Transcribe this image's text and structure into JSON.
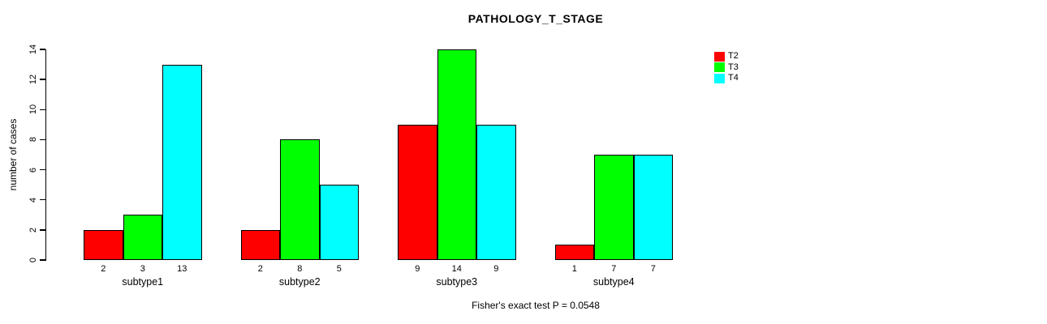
{
  "title": "PATHOLOGY_T_STAGE",
  "caption": "Fisher's exact test P = 0.0548",
  "chart_data": {
    "type": "bar",
    "title": "PATHOLOGY_T_STAGE",
    "xlabel": "",
    "ylabel": "number of cases",
    "categories": [
      "subtype1",
      "subtype2",
      "subtype3",
      "subtype4"
    ],
    "series": [
      {
        "name": "T2",
        "color": "#FF0000",
        "values": [
          2,
          2,
          9,
          1
        ]
      },
      {
        "name": "T3",
        "color": "#00FF00",
        "values": [
          3,
          8,
          14,
          7
        ]
      },
      {
        "name": "T4",
        "color": "#00FFFF",
        "values": [
          13,
          5,
          9,
          7
        ]
      }
    ],
    "bar_value_labels": [
      [
        "2",
        "3",
        "13"
      ],
      [
        "2",
        "8",
        "5"
      ],
      [
        "9",
        "14",
        "9"
      ],
      [
        "1",
        "7",
        "7"
      ]
    ],
    "yticks": [
      0,
      2,
      4,
      6,
      8,
      10,
      12,
      14
    ],
    "ylim": [
      0,
      14
    ],
    "grid": false,
    "legend_position": "top-right",
    "legend_entries": [
      "T2",
      "T3",
      "T4"
    ],
    "annotation": "Fisher's exact test P = 0.0548",
    "bar_border_color": "#000000",
    "background_color": "#FFFFFF"
  }
}
